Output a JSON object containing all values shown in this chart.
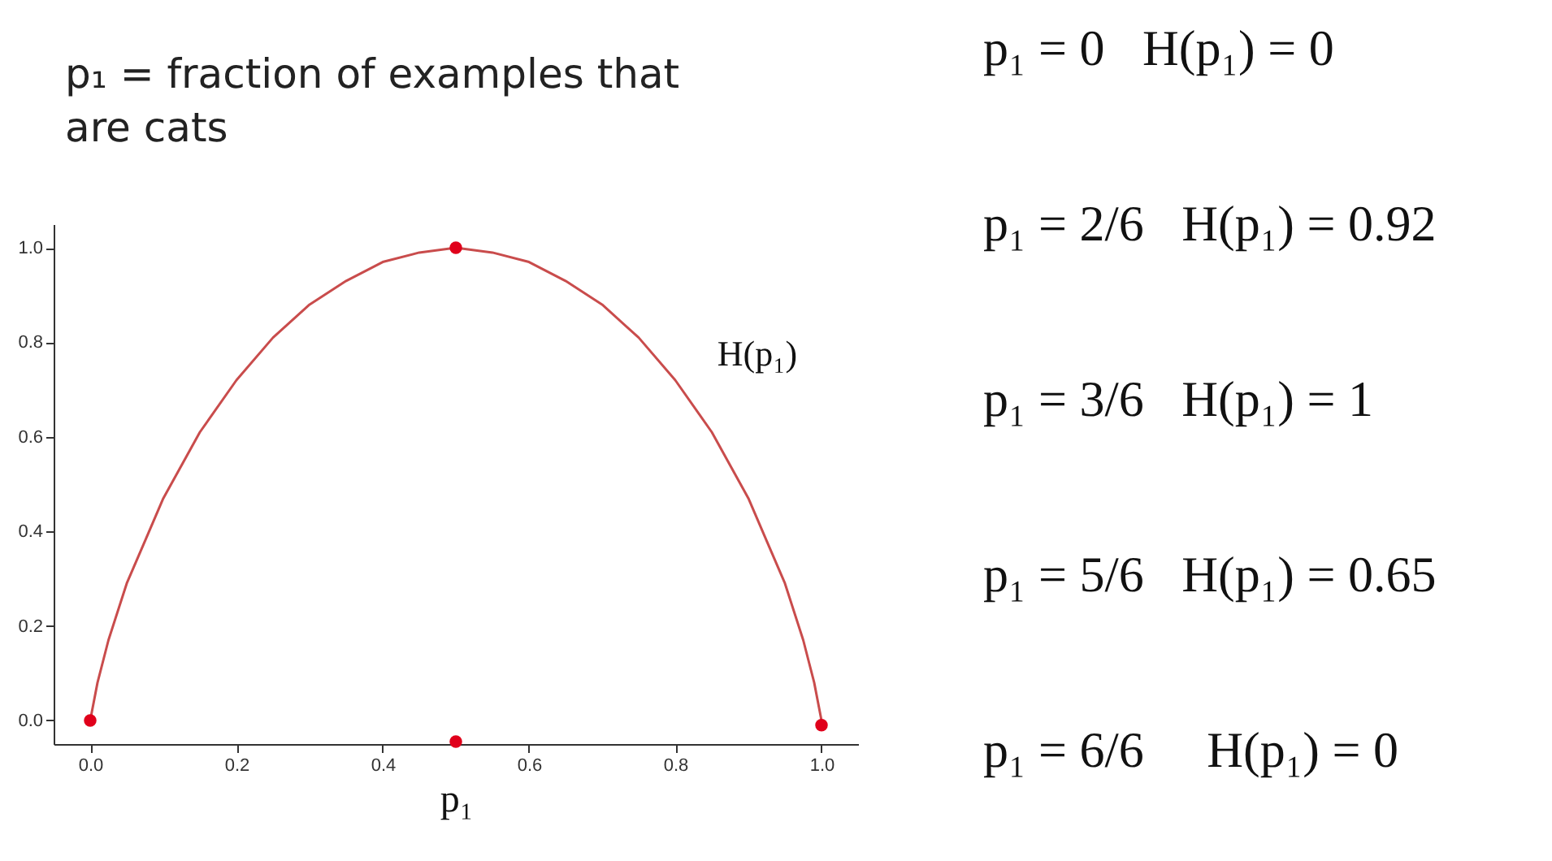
{
  "chart_data": {
    "type": "line",
    "title": "p₁ = fraction of examples that are cats",
    "xlabel": "p₁",
    "xlim": [
      -0.05,
      1.05
    ],
    "ylim": [
      -0.05,
      1.05
    ],
    "xticks": [
      {
        "value": 0,
        "label": "0.0"
      },
      {
        "value": 0.2,
        "label": "0.2"
      },
      {
        "value": 0.4,
        "label": "0.4"
      },
      {
        "value": 0.6,
        "label": "0.6"
      },
      {
        "value": 0.8,
        "label": "0.8"
      },
      {
        "value": 1,
        "label": "1.0"
      }
    ],
    "yticks": [
      {
        "value": 0,
        "label": "0.0"
      },
      {
        "value": 0.2,
        "label": "0.2"
      },
      {
        "value": 0.4,
        "label": "0.4"
      },
      {
        "value": 0.6,
        "label": "0.6"
      },
      {
        "value": 0.8,
        "label": "0.8"
      },
      {
        "value": 1,
        "label": "1.0"
      }
    ],
    "grid": false,
    "series": [
      {
        "name": "H(p₁)",
        "color": "#c94c4c",
        "x": [
          0,
          0.01,
          0.025,
          0.05,
          0.075,
          0.1,
          0.15,
          0.2,
          0.25,
          0.3,
          0.35,
          0.4,
          0.45,
          0.5,
          0.55,
          0.6,
          0.65,
          0.7,
          0.75,
          0.8,
          0.85,
          0.9,
          0.925,
          0.95,
          0.975,
          0.99,
          1
        ],
        "values": [
          0,
          0.08,
          0.17,
          0.29,
          0.38,
          0.47,
          0.61,
          0.72,
          0.81,
          0.88,
          0.93,
          0.97,
          0.99,
          1.0,
          0.99,
          0.97,
          0.93,
          0.88,
          0.81,
          0.72,
          0.61,
          0.47,
          0.38,
          0.29,
          0.17,
          0.08,
          0
        ]
      },
      {
        "type": "scatter",
        "color": "#e0001b",
        "x": [
          0,
          0.5,
          1,
          0.5
        ],
        "values": [
          0,
          1.0,
          -0.01,
          -0.045
        ]
      }
    ],
    "annotations": [
      "p₁ = 0   H(p₁) = 0",
      "p₁ = 2/6   H(p₁) = 0.92",
      "p₁ = 3/6   H(p₁) = 1",
      "p₁ = 5/6   H(p₁) = 0.65",
      "p₁ = 6/6     H(p₁) = 0"
    ]
  }
}
